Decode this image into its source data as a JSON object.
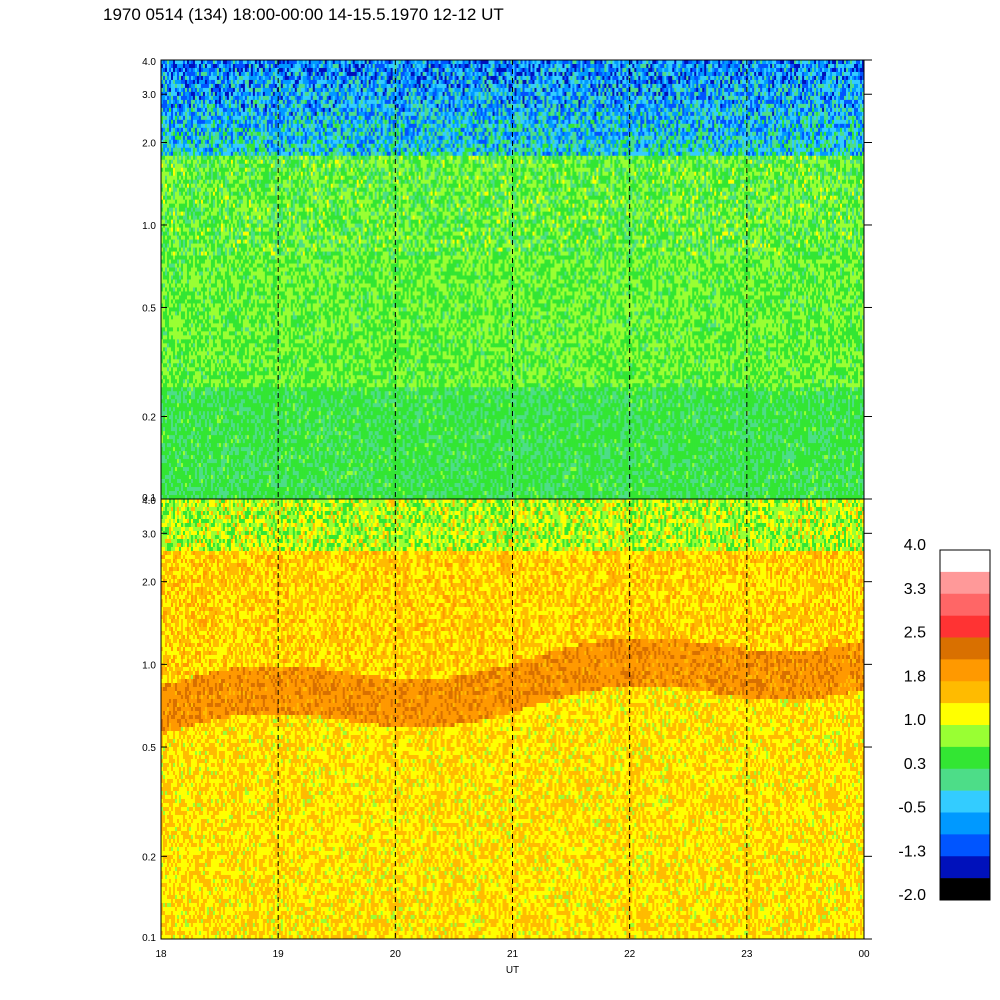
{
  "title": "1970 0514 (134) 18:00-00:00 14-15.5.1970  12-12 UT",
  "chart_data": {
    "type": "heatmap",
    "title": "1970 0514 (134) 18:00-00:00 14-15.5.1970  12-12 UT",
    "xlabel": "UT",
    "x_ticks": [
      "18",
      "19",
      "20",
      "21",
      "22",
      "23",
      "00"
    ],
    "x_range_hours": [
      18,
      24
    ],
    "panels": [
      {
        "name": "upper",
        "y_scale": "log",
        "ylim": [
          0.1,
          4.0
        ],
        "y_ticks": [
          "0.1",
          "0.2",
          "0.5",
          "1.0",
          "2.0",
          "3.0",
          "4.0"
        ],
        "description_levels": {
          "low_freq": 0.3,
          "mid_freq": 0.6,
          "high_freq": -0.4
        }
      },
      {
        "name": "lower",
        "y_scale": "log",
        "ylim": [
          0.1,
          4.0
        ],
        "y_ticks": [
          "0.1",
          "0.2",
          "0.5",
          "1.0",
          "2.0",
          "3.0",
          "4.0"
        ],
        "description_levels": {
          "peak_band": 2.0,
          "background": 1.2,
          "high_freq": 0.8
        }
      }
    ],
    "colorbar": {
      "labels": [
        "4.0",
        "3.3",
        "2.5",
        "1.8",
        "1.0",
        "0.3",
        "-0.5",
        "-1.3",
        "-2.0"
      ],
      "colors": [
        "#ffffff",
        "#ff9999",
        "#ff6666",
        "#ff3333",
        "#d97000",
        "#ff9900",
        "#ffbb00",
        "#ffff00",
        "#99ff33",
        "#33e633",
        "#4ddd88",
        "#33ccff",
        "#0099ff",
        "#0055ff",
        "#0011bb",
        "#000000"
      ]
    }
  }
}
